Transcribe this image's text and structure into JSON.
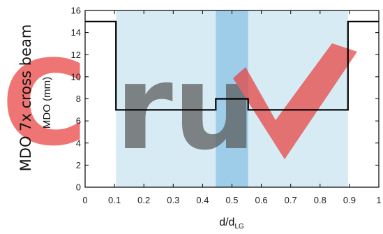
{
  "side_title": "MDO 7x cross beam",
  "watermark": {
    "text": "Crux",
    "colors": {
      "c": "#e8413f",
      "letters": "#5a5a5a",
      "check": "#e8413f"
    }
  },
  "colors": {
    "band_light": "#d7ebf5",
    "band_dark": "#9dcde9",
    "line": "#000000",
    "axis": "#000000"
  },
  "chart_data": {
    "type": "line",
    "title": "",
    "xlabel": "d/d",
    "xlabel_sub": "LG",
    "ylabel": "MDO (mm)",
    "xlim": [
      0,
      1
    ],
    "ylim": [
      0,
      16
    ],
    "xticks": [
      0,
      0.1,
      0.2,
      0.3,
      0.4,
      0.5,
      0.6,
      0.7,
      0.8,
      0.9,
      1
    ],
    "xtick_labels": [
      "0",
      "0.1",
      "0.2",
      "0.3",
      "0.4",
      "0.5",
      "0.6",
      "0.7",
      "0.8",
      "0.9",
      "1"
    ],
    "yticks": [
      0,
      2,
      4,
      6,
      8,
      10,
      12,
      14,
      16
    ],
    "ytick_labels": [
      "0",
      "2",
      "4",
      "6",
      "8",
      "10",
      "12",
      "14",
      "16"
    ],
    "grid": false,
    "shaded_regions": [
      {
        "x": [
          0.105,
          0.895
        ],
        "shade": "light"
      },
      {
        "x": [
          0.445,
          0.555
        ],
        "shade": "dark"
      }
    ],
    "series": [
      {
        "step": true,
        "x": [
          0,
          0.105,
          0.105,
          0.445,
          0.445,
          0.555,
          0.555,
          0.895,
          0.895,
          1
        ],
        "y": [
          15,
          15,
          7,
          7,
          8,
          8,
          7,
          7,
          15,
          15
        ]
      }
    ]
  }
}
